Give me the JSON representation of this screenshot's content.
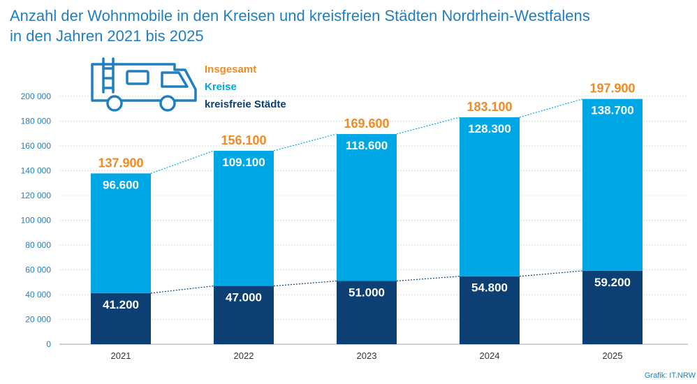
{
  "title_line1": "Anzahl der Wohnmobile in den Kreisen und kreisfreien Städten Nordrhein-Westfalens",
  "title_line2": "in den Jahren 2021 bis 2025",
  "credit": "Grafik: IT.NRW",
  "icon": "camper-van-icon",
  "colors": {
    "title": "#1f7fbf",
    "insgesamt": "#f08a24",
    "kreise": "#00a7e5",
    "kreisfreie": "#0c3f73",
    "axis_text": "#1f7fbf",
    "grid": "#d8dde3"
  },
  "chart_data": {
    "type": "bar",
    "stacked": true,
    "categories": [
      "2021",
      "2022",
      "2023",
      "2024",
      "2025"
    ],
    "series": [
      {
        "name": "kreisfreie Städte",
        "values": [
          41200,
          47000,
          51000,
          54800,
          59200
        ],
        "labels": [
          "41.200",
          "47.000",
          "51.000",
          "54.800",
          "59.200"
        ]
      },
      {
        "name": "Kreise",
        "values": [
          96600,
          109100,
          118600,
          128300,
          138700
        ],
        "labels": [
          "96.600",
          "109.100",
          "118.600",
          "128.300",
          "138.700"
        ]
      }
    ],
    "totals": {
      "name": "Insgesamt",
      "values": [
        137900,
        156100,
        169600,
        183100,
        197900
      ],
      "labels": [
        "137.900",
        "156.100",
        "169.600",
        "183.100",
        "197.900"
      ]
    },
    "legend": [
      "Insgesamt",
      "Kreise",
      "kreisfreie Städte"
    ],
    "legend_position": "top-left",
    "ylim": [
      0,
      200000
    ],
    "yticks": [
      0,
      20000,
      40000,
      60000,
      80000,
      100000,
      120000,
      140000,
      160000,
      180000,
      200000
    ],
    "ytick_labels": [
      "0",
      "20 000",
      "40 000",
      "60 000",
      "80 000",
      "100 000",
      "120 000",
      "140 000",
      "160 000",
      "180 000",
      "200 000"
    ],
    "grid": true,
    "xlabel": "",
    "ylabel": ""
  }
}
